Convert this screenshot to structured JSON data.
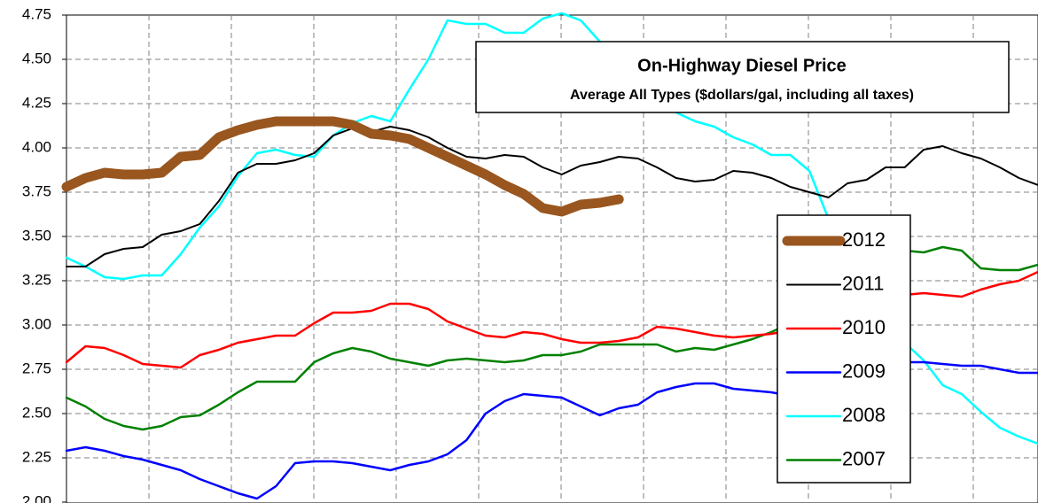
{
  "chart_data": {
    "type": "line",
    "title": "On-Highway Diesel Price",
    "subtitle": "Average All Types ($dollars/gal, including all taxes)",
    "ylim": [
      2.0,
      4.75
    ],
    "yticks": [
      {
        "value": 2.0,
        "label": "2.00"
      },
      {
        "value": 2.25,
        "label": "2.25"
      },
      {
        "value": 2.5,
        "label": "2.50"
      },
      {
        "value": 2.75,
        "label": "2.75"
      },
      {
        "value": 3.0,
        "label": "3.00"
      },
      {
        "value": 3.25,
        "label": "3.25"
      },
      {
        "value": 3.5,
        "label": "3.50"
      },
      {
        "value": 3.75,
        "label": "3.75"
      },
      {
        "value": 4.0,
        "label": "4.00"
      },
      {
        "value": 4.25,
        "label": "4.25"
      },
      {
        "value": 4.5,
        "label": "4.50"
      },
      {
        "value": 4.75,
        "label": "4.75"
      }
    ],
    "grid": true,
    "legend": "right",
    "series": [
      {
        "name": "2012",
        "color": "#99561f",
        "width": 11,
        "values": [
          3.78,
          3.83,
          3.86,
          3.85,
          3.85,
          3.86,
          3.95,
          3.96,
          4.06,
          4.1,
          4.13,
          4.15,
          4.15,
          4.15,
          4.15,
          4.13,
          4.08,
          4.07,
          4.05,
          4.0,
          3.95,
          3.9,
          3.85,
          3.79,
          3.74,
          3.66,
          3.64,
          3.68,
          3.69,
          3.71
        ]
      },
      {
        "name": "2011",
        "color": "#000000",
        "width": 2,
        "values": [
          3.33,
          3.33,
          3.4,
          3.43,
          3.44,
          3.51,
          3.53,
          3.57,
          3.7,
          3.86,
          3.91,
          3.91,
          3.93,
          3.97,
          4.07,
          4.11,
          4.09,
          4.12,
          4.1,
          4.06,
          4.0,
          3.95,
          3.94,
          3.96,
          3.95,
          3.89,
          3.85,
          3.9,
          3.92,
          3.95,
          3.94,
          3.89,
          3.83,
          3.81,
          3.82,
          3.87,
          3.86,
          3.83,
          3.78,
          3.75,
          3.72,
          3.8,
          3.82,
          3.89,
          3.89,
          3.99,
          4.01,
          3.97,
          3.94,
          3.89,
          3.83,
          3.79
        ]
      },
      {
        "name": "2010",
        "color": "#ff0000",
        "width": 2.5,
        "values": [
          2.79,
          2.88,
          2.87,
          2.83,
          2.78,
          2.77,
          2.76,
          2.83,
          2.86,
          2.9,
          2.92,
          2.94,
          2.94,
          3.01,
          3.07,
          3.07,
          3.08,
          3.12,
          3.12,
          3.09,
          3.02,
          2.98,
          2.94,
          2.93,
          2.96,
          2.95,
          2.92,
          2.9,
          2.9,
          2.91,
          2.93,
          2.99,
          2.98,
          2.96,
          2.94,
          2.93,
          2.94,
          2.95,
          2.97,
          3.0,
          3.05,
          3.08,
          3.12,
          3.15,
          3.17,
          3.18,
          3.17,
          3.16,
          3.2,
          3.23,
          3.25,
          3.3
        ]
      },
      {
        "name": "2009",
        "color": "#0000ff",
        "width": 2.5,
        "values": [
          2.29,
          2.31,
          2.29,
          2.26,
          2.24,
          2.21,
          2.18,
          2.13,
          2.09,
          2.05,
          2.02,
          2.09,
          2.22,
          2.23,
          2.23,
          2.22,
          2.2,
          2.18,
          2.21,
          2.23,
          2.27,
          2.35,
          2.5,
          2.57,
          2.61,
          2.6,
          2.59,
          2.54,
          2.49,
          2.53,
          2.55,
          2.62,
          2.65,
          2.67,
          2.67,
          2.64,
          2.63,
          2.62,
          2.6,
          2.62,
          2.66,
          2.71,
          2.75,
          2.78,
          2.79,
          2.79,
          2.78,
          2.77,
          2.77,
          2.75,
          2.73,
          2.73
        ]
      },
      {
        "name": "2008",
        "color": "#00ffff",
        "width": 2.5,
        "values": [
          3.38,
          3.33,
          3.27,
          3.26,
          3.28,
          3.28,
          3.4,
          3.55,
          3.67,
          3.84,
          3.97,
          3.99,
          3.96,
          3.95,
          4.07,
          4.14,
          4.18,
          4.15,
          4.33,
          4.5,
          4.72,
          4.7,
          4.7,
          4.65,
          4.65,
          4.73,
          4.76,
          4.72,
          4.6,
          4.5,
          4.4,
          4.3,
          4.2,
          4.15,
          4.12,
          4.06,
          4.02,
          3.96,
          3.96,
          3.87,
          3.6,
          3.45,
          3.3,
          3.1,
          2.9,
          2.8,
          2.66,
          2.61,
          2.51,
          2.42,
          2.37,
          2.33
        ]
      },
      {
        "name": "2007",
        "color": "#008000",
        "width": 2.5,
        "values": [
          2.59,
          2.54,
          2.47,
          2.43,
          2.41,
          2.43,
          2.48,
          2.49,
          2.55,
          2.62,
          2.68,
          2.68,
          2.68,
          2.79,
          2.84,
          2.87,
          2.85,
          2.81,
          2.79,
          2.77,
          2.8,
          2.81,
          2.8,
          2.79,
          2.8,
          2.83,
          2.83,
          2.85,
          2.89,
          2.89,
          2.89,
          2.89,
          2.85,
          2.87,
          2.86,
          2.89,
          2.92,
          2.96,
          3.01,
          3.1,
          3.2,
          3.3,
          3.36,
          3.4,
          3.42,
          3.41,
          3.44,
          3.42,
          3.32,
          3.31,
          3.31,
          3.34
        ]
      }
    ]
  }
}
